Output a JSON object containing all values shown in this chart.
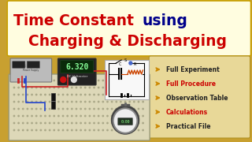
{
  "title_line1_part1": "Time Constant",
  "title_line1_part1_color": "#cc0000",
  "title_line1_part2": " using",
  "title_line1_part2_color": "#00008b",
  "title_line2": "Charging & Discharging",
  "title_line2_color": "#cc0000",
  "title_bg_color": "#fffde0",
  "title_bg_border": "#c8a000",
  "background_color": "#c8a030",
  "bullet_items": [
    {
      "text": "Full Experiment",
      "color": "#222222"
    },
    {
      "text": "Full Procedure",
      "color": "#cc0000"
    },
    {
      "text": "Observation Table",
      "color": "#222222"
    },
    {
      "text": "Calculations",
      "color": "#cc0000"
    },
    {
      "text": "Practical File",
      "color": "#222222"
    }
  ],
  "bullet_bg_color": "#e8d898",
  "bullet_bg_border": "#b09020",
  "arrow_color": "#cc8800",
  "breadboard_color": "#ddd8b8",
  "voltmeter_bg": "#222222",
  "voltmeter_display": "#0a2a0a",
  "voltmeter_text": "#88ff99",
  "voltmeter_label_color": "#dddddd",
  "circuit_bg": "#f8f8f8",
  "circuit_border": "#aaaaaa",
  "stopwatch_body": "#444444",
  "stopwatch_face": "#eeeeee",
  "stopwatch_screen": "#223322",
  "stopwatch_text": "#88ff88",
  "wire_blue": "#2244cc",
  "wire_red": "#cc2222",
  "ps_color": "#bbbbbb"
}
